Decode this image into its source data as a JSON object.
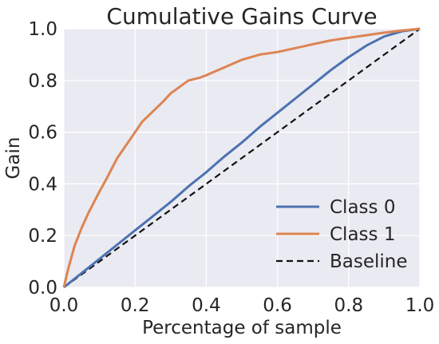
{
  "chart_data": {
    "type": "line",
    "title": "Cumulative Gains Curve",
    "xlabel": "Percentage of sample",
    "ylabel": "Gain",
    "xlim": [
      0,
      1
    ],
    "ylim": [
      0,
      1
    ],
    "xticks": [
      "0.0",
      "0.2",
      "0.4",
      "0.6",
      "0.8",
      "1.0"
    ],
    "yticks": [
      "0.0",
      "0.2",
      "0.4",
      "0.6",
      "0.8",
      "1.0"
    ],
    "grid": true,
    "legend_position": "lower-right",
    "background": "#eaeaf2",
    "series": [
      {
        "name": "Class 0",
        "color": "#4c72b0",
        "style": "solid",
        "x": [
          0,
          0.05,
          0.1,
          0.15,
          0.2,
          0.25,
          0.3,
          0.35,
          0.4,
          0.45,
          0.5,
          0.55,
          0.6,
          0.65,
          0.7,
          0.75,
          0.8,
          0.85,
          0.9,
          0.95,
          1.0
        ],
        "y": [
          0,
          0.055,
          0.11,
          0.165,
          0.22,
          0.275,
          0.33,
          0.39,
          0.445,
          0.505,
          0.56,
          0.62,
          0.675,
          0.73,
          0.785,
          0.84,
          0.89,
          0.935,
          0.97,
          0.99,
          1.0
        ]
      },
      {
        "name": "Class 1",
        "color": "#dd8452",
        "style": "solid",
        "x": [
          0,
          0.01,
          0.02,
          0.03,
          0.05,
          0.07,
          0.1,
          0.12,
          0.15,
          0.18,
          0.2,
          0.22,
          0.25,
          0.28,
          0.3,
          0.33,
          0.35,
          0.38,
          0.4,
          0.45,
          0.5,
          0.55,
          0.6,
          0.65,
          0.7,
          0.75,
          0.8,
          0.85,
          0.9,
          0.95,
          1.0
        ],
        "y": [
          0,
          0.06,
          0.11,
          0.16,
          0.23,
          0.29,
          0.37,
          0.42,
          0.5,
          0.56,
          0.6,
          0.64,
          0.68,
          0.72,
          0.75,
          0.78,
          0.8,
          0.81,
          0.82,
          0.85,
          0.88,
          0.9,
          0.91,
          0.925,
          0.94,
          0.955,
          0.965,
          0.975,
          0.985,
          0.993,
          1.0
        ]
      },
      {
        "name": "Baseline",
        "color": "#111111",
        "style": "dashed",
        "x": [
          0,
          1
        ],
        "y": [
          0,
          1
        ]
      }
    ]
  }
}
